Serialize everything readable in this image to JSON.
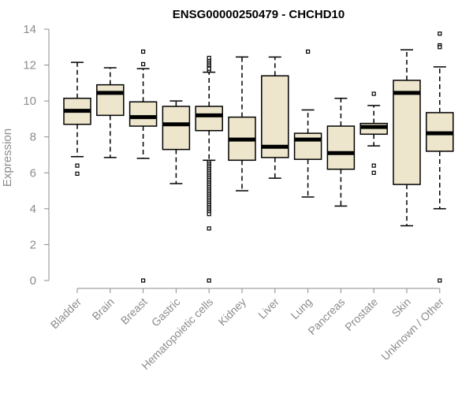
{
  "chart_data": {
    "type": "boxplot",
    "title": "ENSG00000250479 - CHCHD10",
    "ylabel": "Expression",
    "xlabel": "",
    "ylim": [
      0,
      14
    ],
    "yticks": [
      0,
      2,
      4,
      6,
      8,
      10,
      12,
      14
    ],
    "box_color": "#ede6cc",
    "categories": [
      "Bladder",
      "Brain",
      "Breast",
      "Gastric",
      "Hematopoietic cells",
      "Kidney",
      "Liver",
      "Lung",
      "Pancreas",
      "Prostate",
      "Skin",
      "Unknown / Other"
    ],
    "boxes": [
      {
        "whisker_low": 6.9,
        "q1": 8.7,
        "median": 9.45,
        "q3": 10.15,
        "whisker_high": 12.15,
        "outliers": [
          6.4,
          5.95
        ]
      },
      {
        "whisker_low": 6.85,
        "q1": 9.2,
        "median": 10.45,
        "q3": 10.9,
        "whisker_high": 11.85,
        "outliers": []
      },
      {
        "whisker_low": 6.8,
        "q1": 8.6,
        "median": 9.1,
        "q3": 9.95,
        "whisker_high": 11.8,
        "outliers": [
          12.05,
          12.75,
          0.0
        ]
      },
      {
        "whisker_low": 5.4,
        "q1": 7.3,
        "median": 8.7,
        "q3": 9.7,
        "whisker_high": 10.0,
        "outliers": []
      },
      {
        "whisker_low": 6.7,
        "q1": 8.35,
        "median": 9.2,
        "q3": 9.7,
        "whisker_high": 11.6,
        "outliers": [
          11.7,
          11.9,
          12.0,
          12.1,
          12.2,
          12.3,
          12.4,
          11.8,
          6.6,
          6.5,
          6.4,
          6.3,
          6.2,
          6.1,
          6.0,
          5.9,
          5.8,
          5.7,
          5.6,
          5.5,
          5.4,
          5.3,
          5.2,
          5.1,
          5.0,
          4.9,
          4.8,
          4.7,
          4.6,
          4.5,
          4.4,
          4.3,
          4.2,
          4.1,
          4.0,
          3.9,
          3.8,
          3.7,
          2.9,
          0.0
        ]
      },
      {
        "whisker_low": 5.0,
        "q1": 6.7,
        "median": 7.85,
        "q3": 9.1,
        "whisker_high": 12.45,
        "outliers": []
      },
      {
        "whisker_low": 5.7,
        "q1": 6.85,
        "median": 7.45,
        "q3": 11.4,
        "whisker_high": 12.45,
        "outliers": []
      },
      {
        "whisker_low": 4.65,
        "q1": 6.75,
        "median": 7.85,
        "q3": 8.2,
        "whisker_high": 9.5,
        "outliers": [
          12.75
        ]
      },
      {
        "whisker_low": 4.15,
        "q1": 6.2,
        "median": 7.1,
        "q3": 8.6,
        "whisker_high": 10.15,
        "outliers": []
      },
      {
        "whisker_low": 7.5,
        "q1": 8.15,
        "median": 8.55,
        "q3": 8.75,
        "whisker_high": 9.75,
        "outliers": [
          10.4,
          6.4,
          6.0
        ]
      },
      {
        "whisker_low": 3.05,
        "q1": 5.35,
        "median": 10.45,
        "q3": 11.15,
        "whisker_high": 12.85,
        "outliers": []
      },
      {
        "whisker_low": 4.0,
        "q1": 7.2,
        "median": 8.2,
        "q3": 9.35,
        "whisker_high": 11.9,
        "outliers": [
          13.75,
          13.1,
          13.0,
          0.0
        ]
      }
    ]
  }
}
